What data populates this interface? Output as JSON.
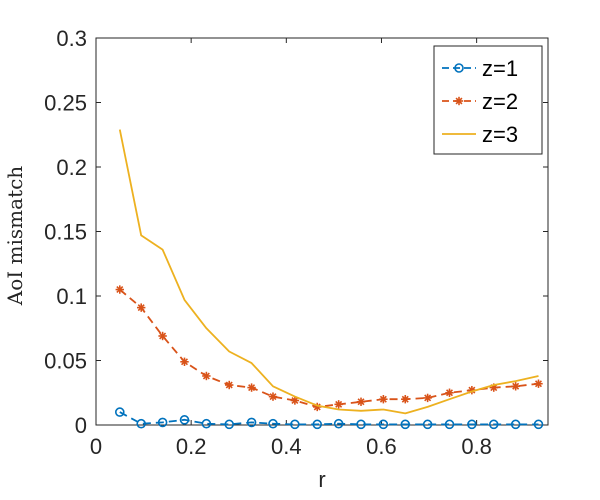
{
  "chart_data": {
    "type": "line",
    "xlabel": "r",
    "ylabel": "AoI mismatch",
    "xlim": [
      0,
      0.95
    ],
    "ylim": [
      0,
      0.3
    ],
    "x_ticks": [
      0,
      0.2,
      0.4,
      0.6,
      0.8
    ],
    "x_tick_labels": [
      "0",
      "0.2",
      "0.4",
      "0.6",
      "0.8"
    ],
    "y_ticks": [
      0,
      0.05,
      0.1,
      0.15,
      0.2,
      0.25,
      0.3
    ],
    "y_tick_labels": [
      "0",
      "0.05",
      "0.1",
      "0.15",
      "0.2",
      "0.25",
      "0.3"
    ],
    "grid": false,
    "legend_position": "top-right",
    "x": [
      0.05,
      0.095,
      0.14,
      0.186,
      0.232,
      0.28,
      0.327,
      0.372,
      0.418,
      0.465,
      0.51,
      0.557,
      0.604,
      0.65,
      0.697,
      0.743,
      0.79,
      0.836,
      0.882,
      0.93
    ],
    "series": [
      {
        "name": "z=1",
        "color": "#0072BD",
        "line": "dashed",
        "marker": "circle",
        "values": [
          0.01,
          0.001,
          0.002,
          0.004,
          0.001,
          0.0005,
          0.002,
          0.001,
          0.0005,
          0.0005,
          0.001,
          0.0005,
          0.0005,
          0.0005,
          0.0005,
          0.0005,
          0.0005,
          0.0005,
          0.0005,
          0.0005
        ]
      },
      {
        "name": "z=2",
        "color": "#D95319",
        "line": "dashed",
        "marker": "star",
        "values": [
          0.105,
          0.091,
          0.069,
          0.049,
          0.038,
          0.031,
          0.029,
          0.022,
          0.019,
          0.014,
          0.016,
          0.018,
          0.02,
          0.02,
          0.021,
          0.025,
          0.027,
          0.029,
          0.03,
          0.032
        ]
      },
      {
        "name": "z=3",
        "color": "#EDB120",
        "line": "solid",
        "marker": "none",
        "values": [
          0.229,
          0.147,
          0.136,
          0.097,
          0.075,
          0.057,
          0.048,
          0.03,
          0.022,
          0.015,
          0.012,
          0.011,
          0.012,
          0.009,
          0.014,
          0.02,
          0.026,
          0.031,
          0.034,
          0.038
        ]
      }
    ]
  }
}
